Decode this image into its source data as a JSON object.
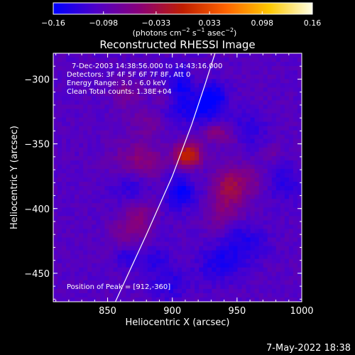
{
  "chart_data": {
    "type": "heatmap",
    "title": "Reconstructed RHESSI Image",
    "xlabel": "Heliocentric X (arcsec)",
    "ylabel": "Heliocentric Y (arcsec)",
    "xlim": [
      808,
      1000
    ],
    "ylim": [
      -472,
      -280
    ],
    "x_ticks": [
      850,
      900,
      950,
      1000
    ],
    "x_tick_labels": [
      "850",
      "900",
      "950",
      "1000"
    ],
    "y_ticks": [
      -300,
      -350,
      -400,
      -450
    ],
    "y_tick_labels": [
      "−300",
      "−350",
      "−400",
      "−450"
    ],
    "colorbar": {
      "min": -0.16,
      "max": 0.16,
      "ticks": [
        -0.16,
        -0.098,
        -0.033,
        0.033,
        0.098,
        0.16
      ],
      "tick_labels": [
        "−0.16",
        "−0.098",
        "−0.033",
        "0.033",
        "0.098",
        "0.16"
      ],
      "units_prefix": "(photons cm",
      "units_exp1": "−2",
      "units_mid": " s",
      "units_exp2": "−1",
      "units_mid2": " asec",
      "units_exp3": "−2",
      "units_suffix": ")",
      "colormap": [
        "#0000ff",
        "#5000c8",
        "#8a0078",
        "#c01e00",
        "#ff6400",
        "#ffc800",
        "#ffffe6"
      ]
    },
    "peak": {
      "x": 912,
      "y": -360
    },
    "limb_curve": [
      [
        856,
        -472
      ],
      [
        880,
        -420
      ],
      [
        900,
        -375
      ],
      [
        915,
        -335
      ],
      [
        925,
        -305
      ],
      [
        933,
        -280
      ]
    ],
    "annotations": {
      "time": "7-Dec-2003 14:38:56.000 to 14:43:16.000",
      "detectors": "Detectors: 3F 4F 5F 6F 7F 8F, Att 0",
      "energy": "Energy Range: 3.0 - 6.0 keV",
      "clean": "Clean     Total counts: 1.38E+04",
      "peak_label": "Position of Peak = [912,-360]"
    }
  },
  "footer": {
    "timestamp": "7-May-2022 18:38"
  }
}
